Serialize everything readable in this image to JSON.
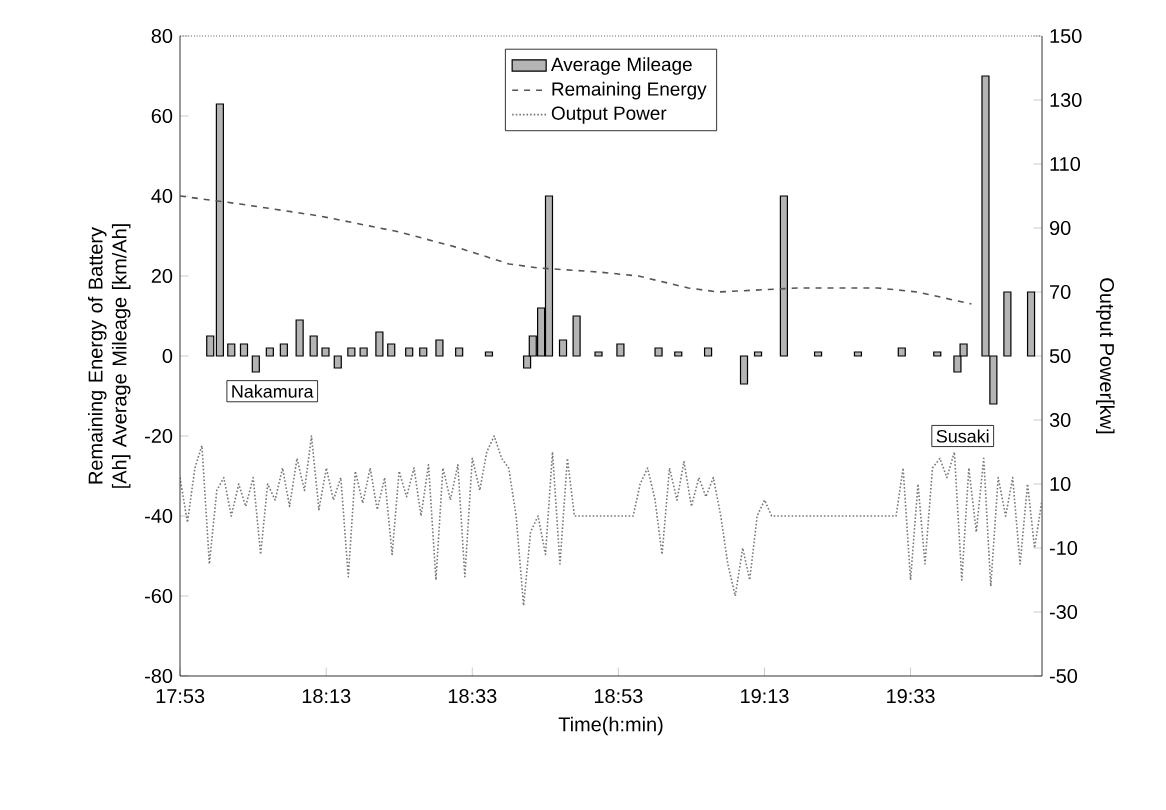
{
  "chart_data": {
    "type": "bar",
    "xlabel": "Time(h:min)",
    "ylabel": "Remaining Energy of Battery [Ah] Average Mileage [km/Ah]",
    "y2label": "Output Power[kw]",
    "xlim": [
      17.883,
      19.85
    ],
    "xticks": [
      {
        "value": 17.8833,
        "label": "17:53"
      },
      {
        "value": 18.2167,
        "label": "18:13"
      },
      {
        "value": 18.55,
        "label": "18:33"
      },
      {
        "value": 18.8833,
        "label": "18:53"
      },
      {
        "value": 19.2167,
        "label": "19:13"
      },
      {
        "value": 19.55,
        "label": "19:33"
      }
    ],
    "ylim": [
      -80,
      80
    ],
    "yticks": [
      -80,
      -60,
      -40,
      -20,
      0,
      20,
      40,
      60,
      80
    ],
    "y2lim": [
      -50,
      150
    ],
    "y2ticks": [
      -50,
      -30,
      -10,
      10,
      30,
      50,
      70,
      90,
      110,
      130,
      150
    ],
    "legend": "top",
    "grid": false,
    "series": [
      {
        "name": "Average Mileage",
        "color": "#b4b4b4",
        "x": [
          17.952,
          17.974,
          18.0,
          18.029,
          18.056,
          18.088,
          18.12,
          18.156,
          18.188,
          18.215,
          18.243,
          18.274,
          18.302,
          18.338,
          18.365,
          18.406,
          18.438,
          18.475,
          18.52,
          18.588,
          18.675,
          18.688,
          18.707,
          18.725,
          18.757,
          18.788,
          18.838,
          18.888,
          18.975,
          19.02,
          19.088,
          19.17,
          19.202,
          19.261,
          19.339,
          19.43,
          19.53,
          19.611,
          19.657,
          19.671,
          19.721,
          19.739,
          19.771,
          19.825
        ],
        "values": [
          5,
          63,
          3,
          3,
          -4,
          2,
          3,
          9,
          5,
          2,
          -3,
          2,
          2,
          6,
          3,
          2,
          2,
          4,
          2,
          1,
          -3,
          5,
          12,
          40,
          4,
          10,
          1,
          3,
          2,
          1,
          2,
          -7,
          1,
          40,
          1,
          1,
          2,
          1,
          -4,
          3,
          70,
          -12,
          16,
          16
        ]
      },
      {
        "name": "Remaining Energy",
        "type": "line",
        "line_style": "dashed",
        "color": "#555555",
        "x": [
          17.883,
          18.02,
          18.202,
          18.384,
          18.52,
          18.634,
          18.702,
          18.838,
          18.929,
          19.043,
          19.111,
          19.293,
          19.475,
          19.566,
          19.689
        ],
        "values": [
          40,
          38,
          35,
          31,
          27,
          23,
          22,
          21,
          20,
          17,
          16,
          17,
          17,
          16,
          13
        ]
      },
      {
        "name": "Output Power",
        "type": "line",
        "line_style": "dotted",
        "axis": "y2",
        "color": "#777777",
        "x": [
          17.883,
          17.9,
          17.917,
          17.933,
          17.95,
          17.967,
          17.983,
          18.0,
          18.017,
          18.033,
          18.05,
          18.067,
          18.083,
          18.1,
          18.117,
          18.133,
          18.15,
          18.167,
          18.183,
          18.2,
          18.217,
          18.233,
          18.25,
          18.267,
          18.283,
          18.3,
          18.317,
          18.333,
          18.35,
          18.367,
          18.383,
          18.4,
          18.417,
          18.433,
          18.45,
          18.467,
          18.483,
          18.5,
          18.517,
          18.533,
          18.55,
          18.567,
          18.583,
          18.6,
          18.617,
          18.633,
          18.65,
          18.667,
          18.683,
          18.7,
          18.717,
          18.733,
          18.75,
          18.767,
          18.783,
          18.85,
          18.917,
          18.933,
          18.95,
          18.967,
          18.983,
          19.0,
          19.017,
          19.033,
          19.05,
          19.067,
          19.083,
          19.1,
          19.117,
          19.133,
          19.15,
          19.167,
          19.183,
          19.2,
          19.217,
          19.233,
          19.383,
          19.517,
          19.533,
          19.55,
          19.567,
          19.583,
          19.6,
          19.617,
          19.633,
          19.65,
          19.667,
          19.683,
          19.7,
          19.717,
          19.733,
          19.75,
          19.767,
          19.783,
          19.8,
          19.817,
          19.833,
          19.85
        ],
        "values": [
          12,
          -2,
          15,
          22,
          -15,
          8,
          12,
          0,
          10,
          3,
          12,
          -12,
          10,
          5,
          15,
          3,
          18,
          8,
          25,
          2,
          15,
          5,
          12,
          -19,
          14,
          4,
          15,
          2,
          12,
          -12,
          14,
          6,
          15,
          0,
          16,
          -20,
          15,
          5,
          16,
          -19,
          18,
          8,
          20,
          25,
          18,
          15,
          0,
          -28,
          -5,
          0,
          -12,
          20,
          -15,
          18,
          0,
          0,
          0,
          10,
          15,
          5,
          -12,
          15,
          5,
          17,
          3,
          12,
          6,
          12,
          0,
          -15,
          -25,
          -10,
          -20,
          0,
          5,
          0,
          0,
          0,
          15,
          -20,
          10,
          -15,
          15,
          18,
          12,
          20,
          -20,
          15,
          -5,
          18,
          -22,
          12,
          0,
          12,
          -15,
          10,
          -10,
          5
        ]
      }
    ],
    "annotations": [
      "Nakamura",
      "Susaki"
    ]
  }
}
